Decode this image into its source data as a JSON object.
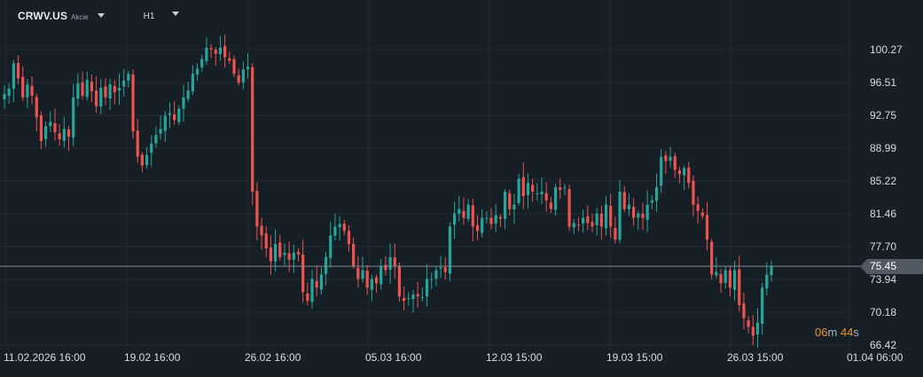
{
  "symbol": "CRWV.US",
  "asset_type": "Akcie",
  "timeframe": "H1",
  "current_price": "75.45",
  "countdown": {
    "minutes": "06",
    "m_unit": "m",
    "seconds": "44",
    "s_unit": "s"
  },
  "colors": {
    "bg": "#161e26",
    "grid": "#222c35",
    "up": "#26a69a",
    "down": "#ef5350",
    "text": "#d7dde3",
    "countdown": "#e8952e",
    "price_line": "#7f8a94"
  },
  "icons": [
    "symbol-dropdown-caret-icon",
    "timeframe-dropdown-caret-icon"
  ],
  "chart_data": {
    "type": "candlestick",
    "y_axis_labels": [
      "100.27",
      "96.51",
      "92.75",
      "88.99",
      "85.22",
      "81.46",
      "77.70",
      "73.94",
      "70.18",
      "66.42"
    ],
    "x_axis_labels": [
      "11.02.2026 16:00",
      "19.02 16:00",
      "26.02 16:00",
      "05.03 16:00",
      "12.03 15:00",
      "19.03 15:00",
      "26.03 15:00",
      "01.04 06:00"
    ],
    "ylim": [
      66.0,
      102.0
    ],
    "grid": true,
    "closes": [
      95.2,
      95.8,
      98.7,
      97.0,
      94.8,
      96.3,
      95.0,
      92.5,
      89.8,
      91.5,
      92.0,
      90.8,
      90.0,
      91.2,
      90.3,
      94.8,
      96.4,
      95.0,
      96.8,
      95.5,
      93.8,
      95.9,
      94.8,
      96.3,
      95.4,
      95.9,
      96.7,
      97.5,
      90.9,
      88.0,
      87.0,
      88.2,
      89.5,
      90.5,
      91.2,
      92.7,
      93.0,
      92.2,
      93.5,
      94.8,
      95.6,
      97.5,
      98.1,
      99.2,
      100.5,
      100.3,
      99.8,
      100.5,
      99.4,
      99.0,
      97.5,
      96.5,
      98.0,
      98.3,
      84.0,
      80.0,
      79.0,
      77.5,
      76.0,
      78.0,
      76.5,
      77.0,
      76.2,
      77.0,
      76.8,
      72.5,
      71.5,
      74.0,
      73.0,
      74.5,
      76.5,
      79.0,
      80.0,
      80.3,
      79.5,
      78.0,
      75.5,
      74.0,
      75.0,
      73.0,
      74.0,
      73.5,
      75.5,
      75.0,
      76.5,
      75.5,
      72.0,
      71.5,
      71.8,
      72.2,
      72.0,
      71.9,
      74.0,
      74.0,
      75.0,
      75.3,
      74.8,
      80.0,
      81.5,
      82.0,
      81.0,
      82.5,
      80.0,
      79.5,
      81.0,
      81.0,
      80.3,
      81.3,
      80.9,
      84.0,
      82.0,
      82.5,
      85.5,
      83.5,
      85.0,
      84.0,
      83.8,
      84.0,
      83.0,
      82.0,
      84.5,
      84.2,
      84.5,
      80.0,
      80.4,
      80.2,
      81.0,
      80.4,
      80.0,
      81.5,
      80.0,
      82.5,
      80.0,
      78.5,
      84.0,
      82.0,
      82.5,
      81.0,
      81.5,
      81.0,
      82.5,
      83.0,
      84.5,
      88.0,
      87.5,
      88.0,
      86.5,
      86.0,
      86.7,
      85.0,
      82.5,
      81.8,
      81.2,
      78.5,
      74.5,
      74.8,
      73.5,
      75.0,
      73.0,
      75.0,
      71.0,
      69.5,
      68.5,
      67.5,
      69.0,
      73.0,
      74.5,
      75.45
    ],
    "series_colors": {
      "up": "#26a69a",
      "down": "#ef5350"
    }
  }
}
